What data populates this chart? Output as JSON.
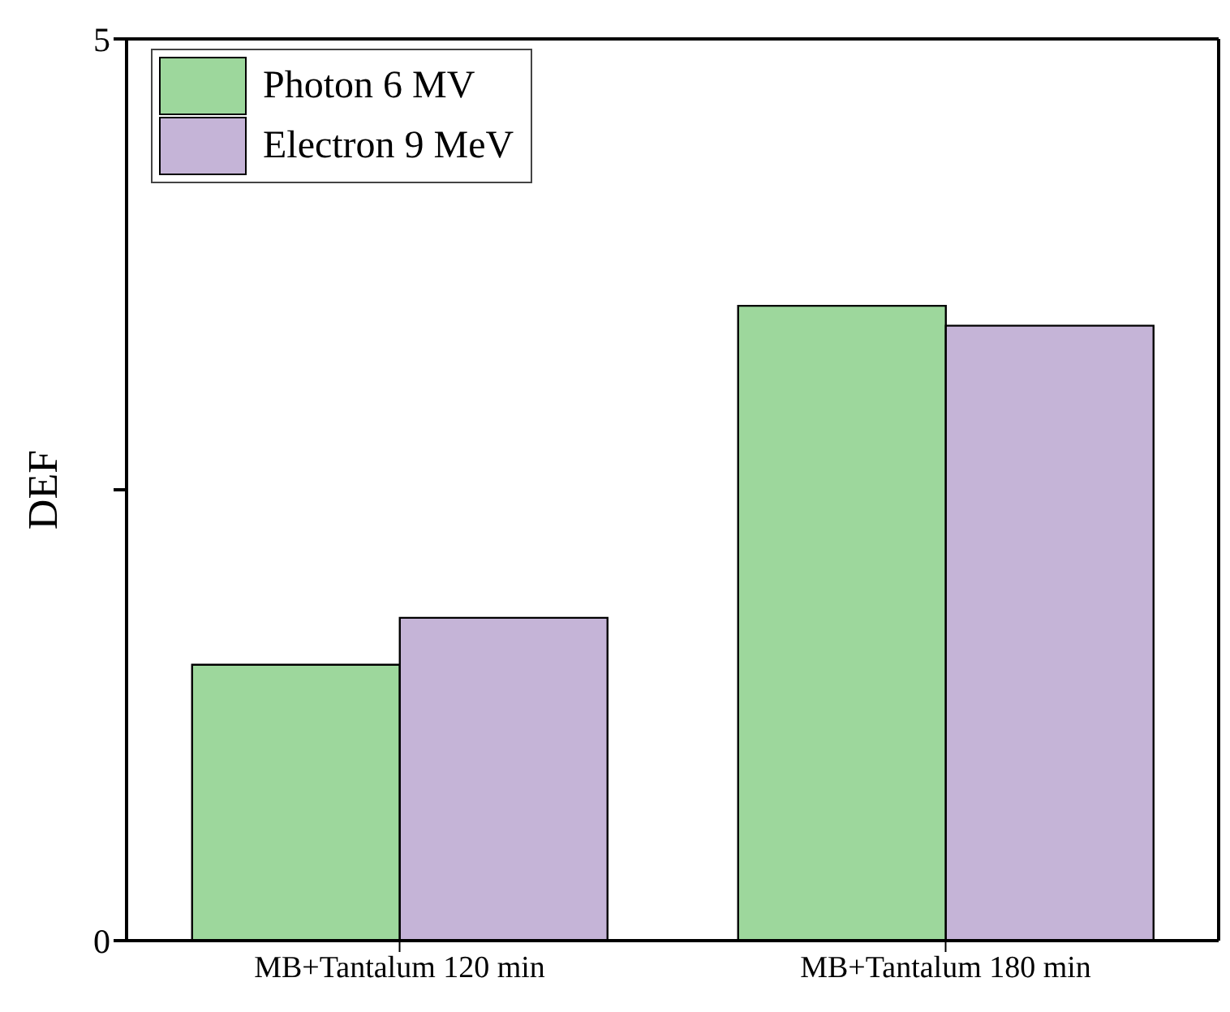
{
  "chart_data": {
    "type": "bar",
    "ylabel": "DEF",
    "categories": [
      "MB+Tantalum 120 min",
      "MB+Tantalum 180 min"
    ],
    "series": [
      {
        "name": "Photon 6 MV",
        "color": "#9dd79c",
        "values": [
          1.53,
          3.52
        ]
      },
      {
        "name": "Electron 9 MeV",
        "color": "#c5b4d7",
        "values": [
          1.79,
          3.41
        ]
      }
    ],
    "ylim": [
      0,
      5
    ],
    "yticks": [
      0,
      {
        "value": 2.5,
        "label": null
      },
      5
    ],
    "legend": "top left"
  }
}
